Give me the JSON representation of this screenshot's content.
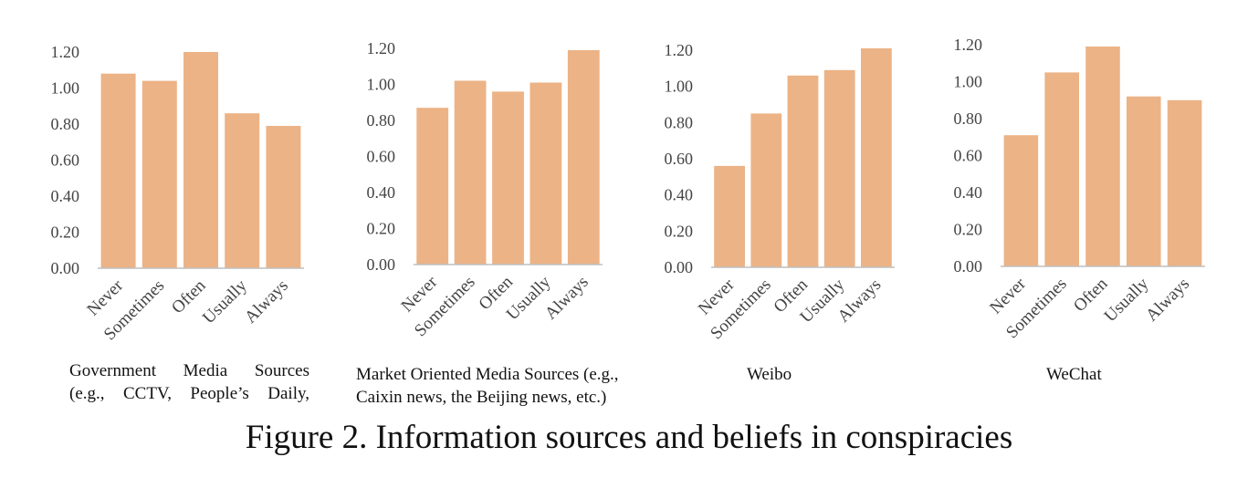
{
  "figure_title": "Figure 2. Information sources and beliefs in conspiracies",
  "bar_color": "#ECB386",
  "axis_color": "#BFBFBF",
  "chart_data": [
    {
      "type": "bar",
      "caption_lines": [
        "Government Media Sources",
        "(e.g., CCTV, People’s Daily,"
      ],
      "categories": [
        "Never",
        "Sometimes",
        "Often",
        "Usually",
        "Always"
      ],
      "values": [
        1.08,
        1.04,
        1.2,
        0.86,
        0.79
      ],
      "ylim": [
        0,
        1.2
      ],
      "yticks": [
        "0.00",
        "0.20",
        "0.40",
        "0.60",
        "0.80",
        "1.00",
        "1.20"
      ],
      "grid": false
    },
    {
      "type": "bar",
      "caption_lines": [
        "Market Oriented Media Sources (e.g.,",
        "Caixin news, the Beijing news, etc.)"
      ],
      "categories": [
        "Never",
        "Sometimes",
        "Often",
        "Usually",
        "Always"
      ],
      "values": [
        0.87,
        1.02,
        0.96,
        1.01,
        1.19
      ],
      "ylim": [
        0,
        1.2
      ],
      "yticks": [
        "0.00",
        "0.20",
        "0.40",
        "0.60",
        "0.80",
        "1.00",
        "1.20"
      ],
      "grid": false
    },
    {
      "type": "bar",
      "caption_lines": [
        "Weibo"
      ],
      "categories": [
        "Never",
        "Sometimes",
        "Often",
        "Usually",
        "Always"
      ],
      "values": [
        0.56,
        0.85,
        1.06,
        1.09,
        1.21
      ],
      "ylim": [
        0,
        1.2
      ],
      "yticks": [
        "0.00",
        "0.20",
        "0.40",
        "0.60",
        "0.80",
        "1.00",
        "1.20"
      ],
      "grid": false
    },
    {
      "type": "bar",
      "caption_lines": [
        "WeChat"
      ],
      "categories": [
        "Never",
        "Sometimes",
        "Often",
        "Usually",
        "Always"
      ],
      "values": [
        0.71,
        1.05,
        1.19,
        0.92,
        0.9
      ],
      "ylim": [
        0,
        1.2
      ],
      "yticks": [
        "0.00",
        "0.20",
        "0.40",
        "0.60",
        "0.80",
        "1.00",
        "1.20"
      ],
      "grid": false
    }
  ]
}
